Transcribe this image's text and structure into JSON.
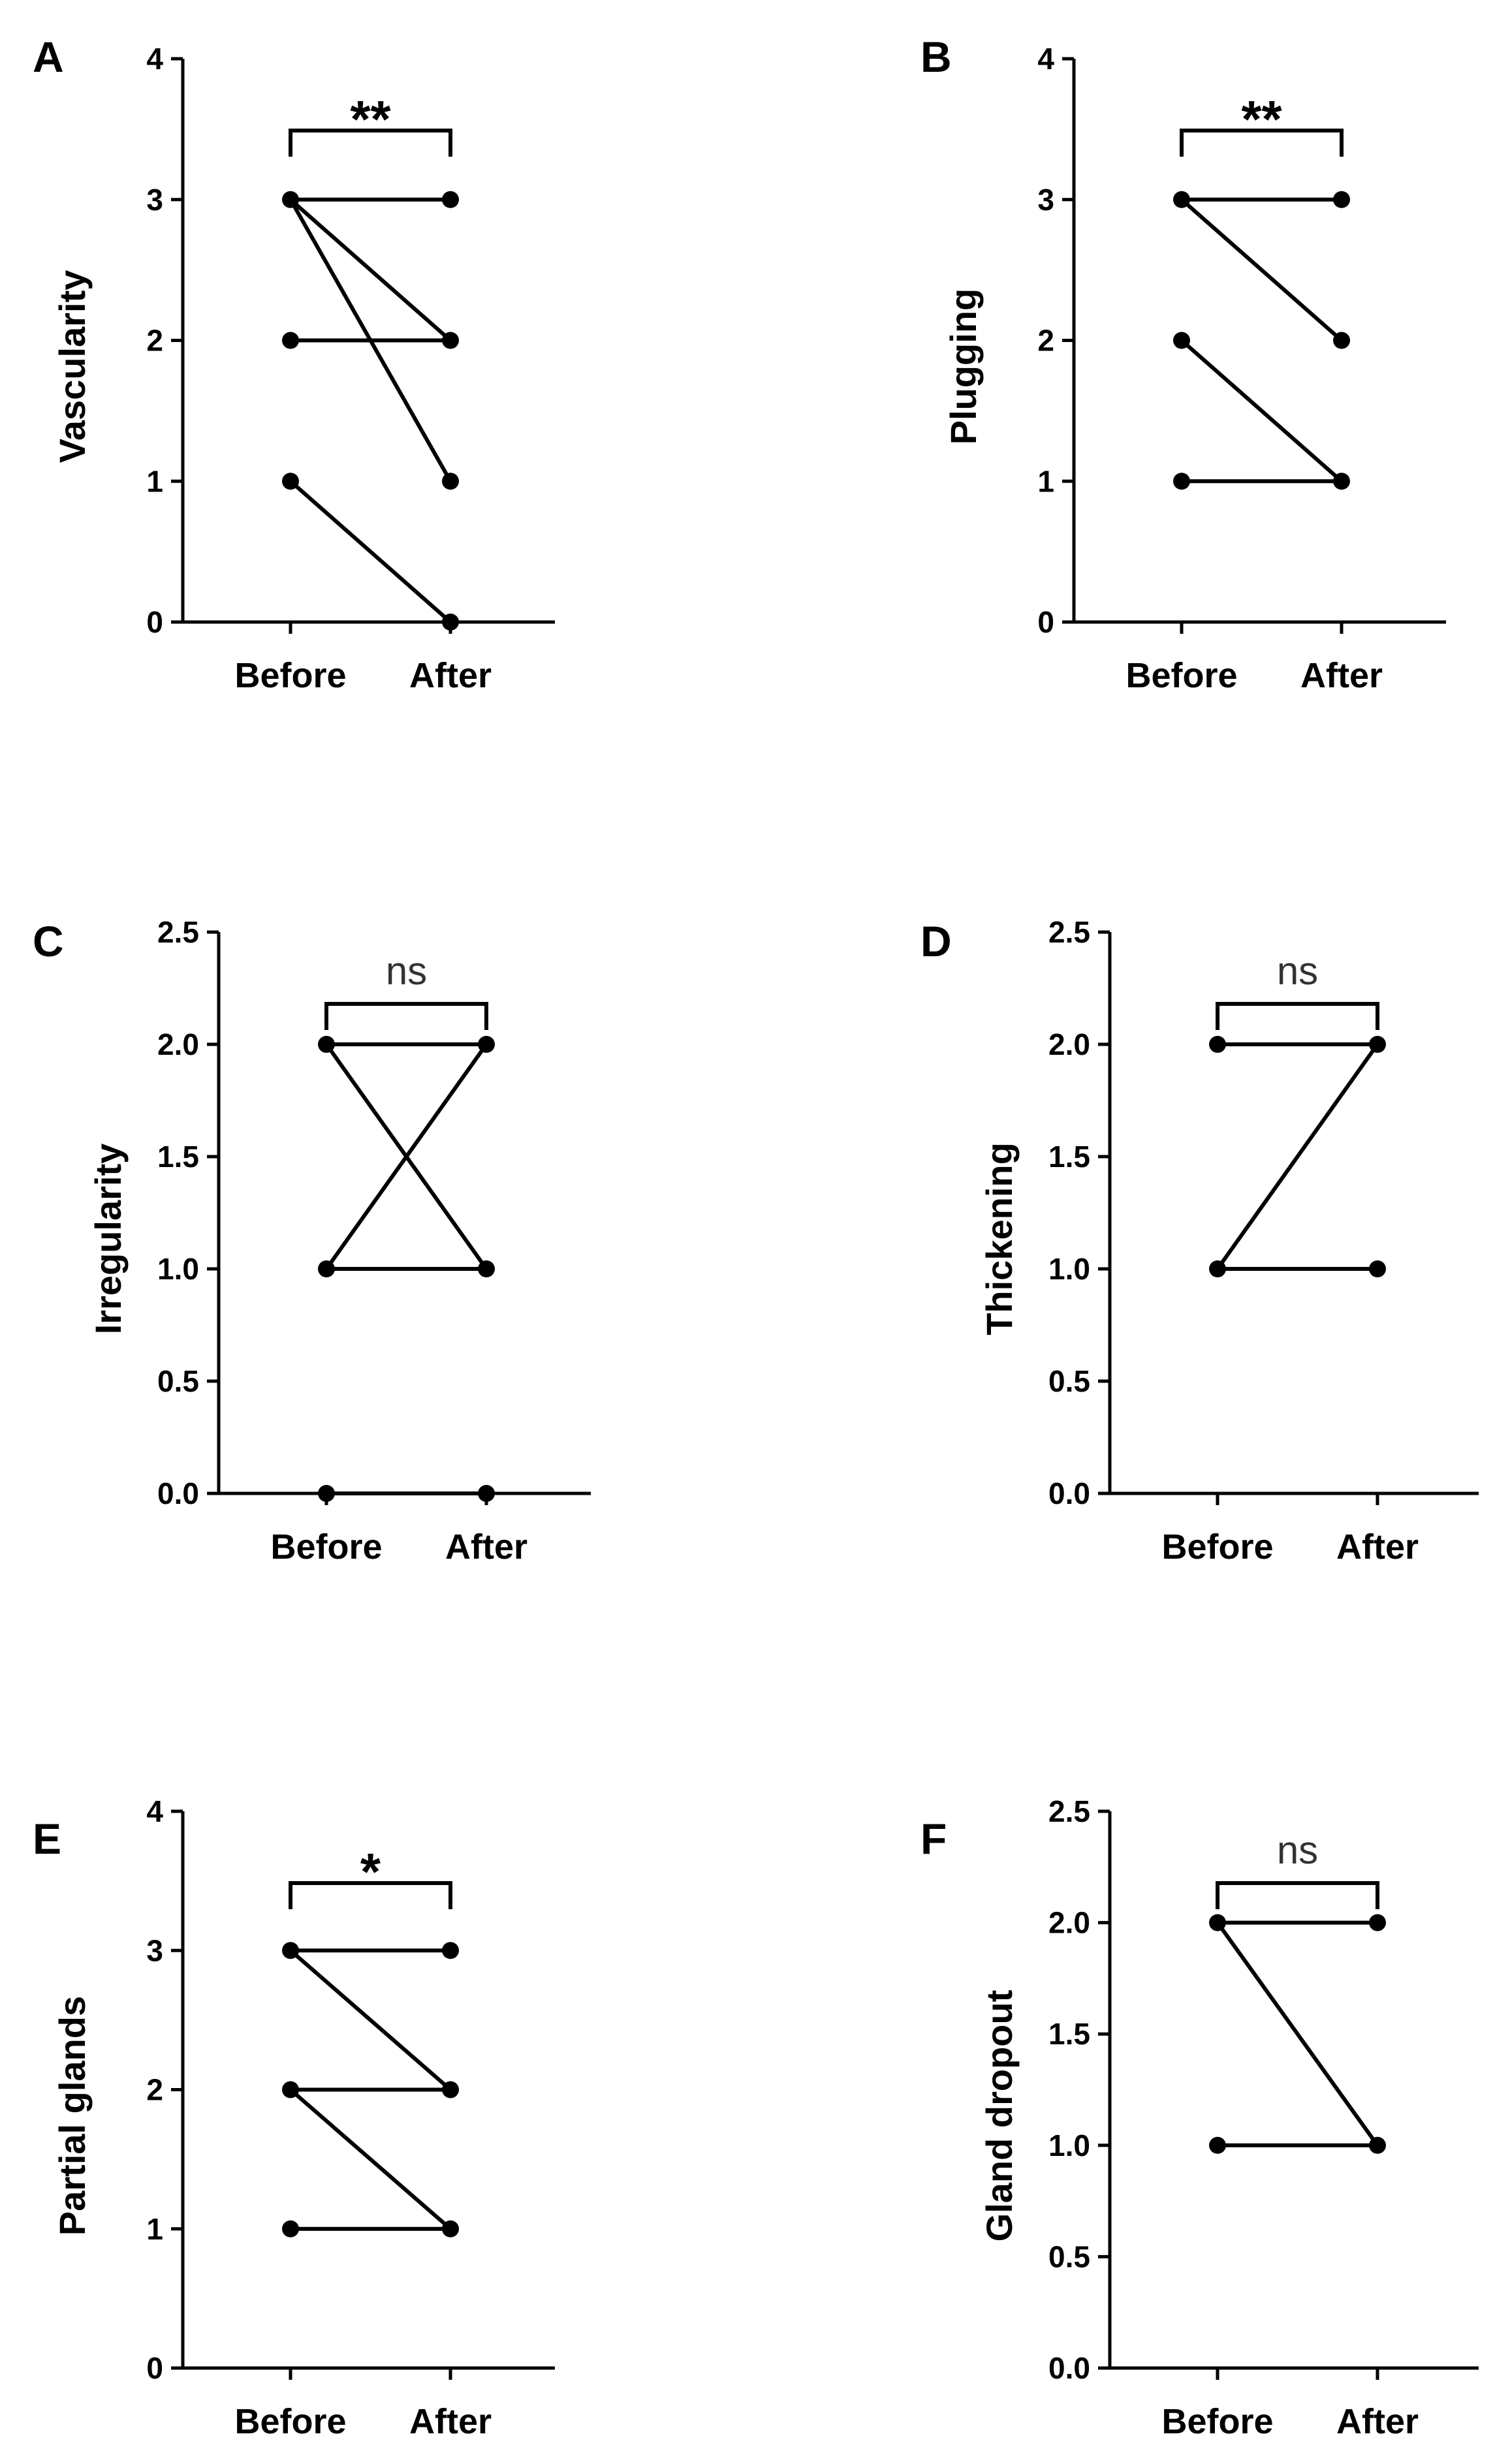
{
  "chart_data": [
    {
      "panel": "A",
      "type": "line",
      "categories": [
        "Before",
        "After"
      ],
      "ylabel": "Vascularity",
      "ylim": [
        0,
        4
      ],
      "yticks": [
        "0",
        "1",
        "2",
        "3",
        "4"
      ],
      "significance": "**",
      "pairs": [
        [
          3,
          3
        ],
        [
          3,
          2
        ],
        [
          3,
          1
        ],
        [
          2,
          2
        ],
        [
          1,
          0
        ]
      ]
    },
    {
      "panel": "B",
      "type": "line",
      "categories": [
        "Before",
        "After"
      ],
      "ylabel": "Plugging",
      "ylim": [
        0,
        4
      ],
      "yticks": [
        "0",
        "1",
        "2",
        "3",
        "4"
      ],
      "significance": "**",
      "pairs": [
        [
          3,
          3
        ],
        [
          3,
          2
        ],
        [
          2,
          1
        ],
        [
          1,
          1
        ]
      ]
    },
    {
      "panel": "C",
      "type": "line",
      "categories": [
        "Before",
        "After"
      ],
      "ylabel": "Irregularity",
      "ylim": [
        0,
        2.5
      ],
      "yticks": [
        "0.0",
        "0.5",
        "1.0",
        "1.5",
        "2.0",
        "2.5"
      ],
      "significance": "ns",
      "pairs": [
        [
          2,
          2
        ],
        [
          2,
          1
        ],
        [
          1,
          2
        ],
        [
          1,
          1
        ],
        [
          0,
          0
        ]
      ]
    },
    {
      "panel": "D",
      "type": "line",
      "categories": [
        "Before",
        "After"
      ],
      "ylabel": "Thickening",
      "ylim": [
        0,
        2.5
      ],
      "yticks": [
        "0.0",
        "0.5",
        "1.0",
        "1.5",
        "2.0",
        "2.5"
      ],
      "significance": "ns",
      "pairs": [
        [
          2,
          2
        ],
        [
          1,
          2
        ],
        [
          1,
          1
        ]
      ]
    },
    {
      "panel": "E",
      "type": "line",
      "categories": [
        "Before",
        "After"
      ],
      "ylabel": "Partial glands",
      "ylim": [
        0,
        4
      ],
      "yticks": [
        "0",
        "1",
        "2",
        "3",
        "4"
      ],
      "significance": "*",
      "pairs": [
        [
          3,
          3
        ],
        [
          3,
          2
        ],
        [
          2,
          2
        ],
        [
          2,
          1
        ],
        [
          1,
          1
        ]
      ]
    },
    {
      "panel": "F",
      "type": "line",
      "categories": [
        "Before",
        "After"
      ],
      "ylabel": "Gland dropout",
      "ylim": [
        0,
        2.5
      ],
      "yticks": [
        "0.0",
        "0.5",
        "1.0",
        "1.5",
        "2.0",
        "2.5"
      ],
      "significance": "ns",
      "pairs": [
        [
          2,
          2
        ],
        [
          2,
          1
        ],
        [
          1,
          1
        ]
      ]
    }
  ]
}
